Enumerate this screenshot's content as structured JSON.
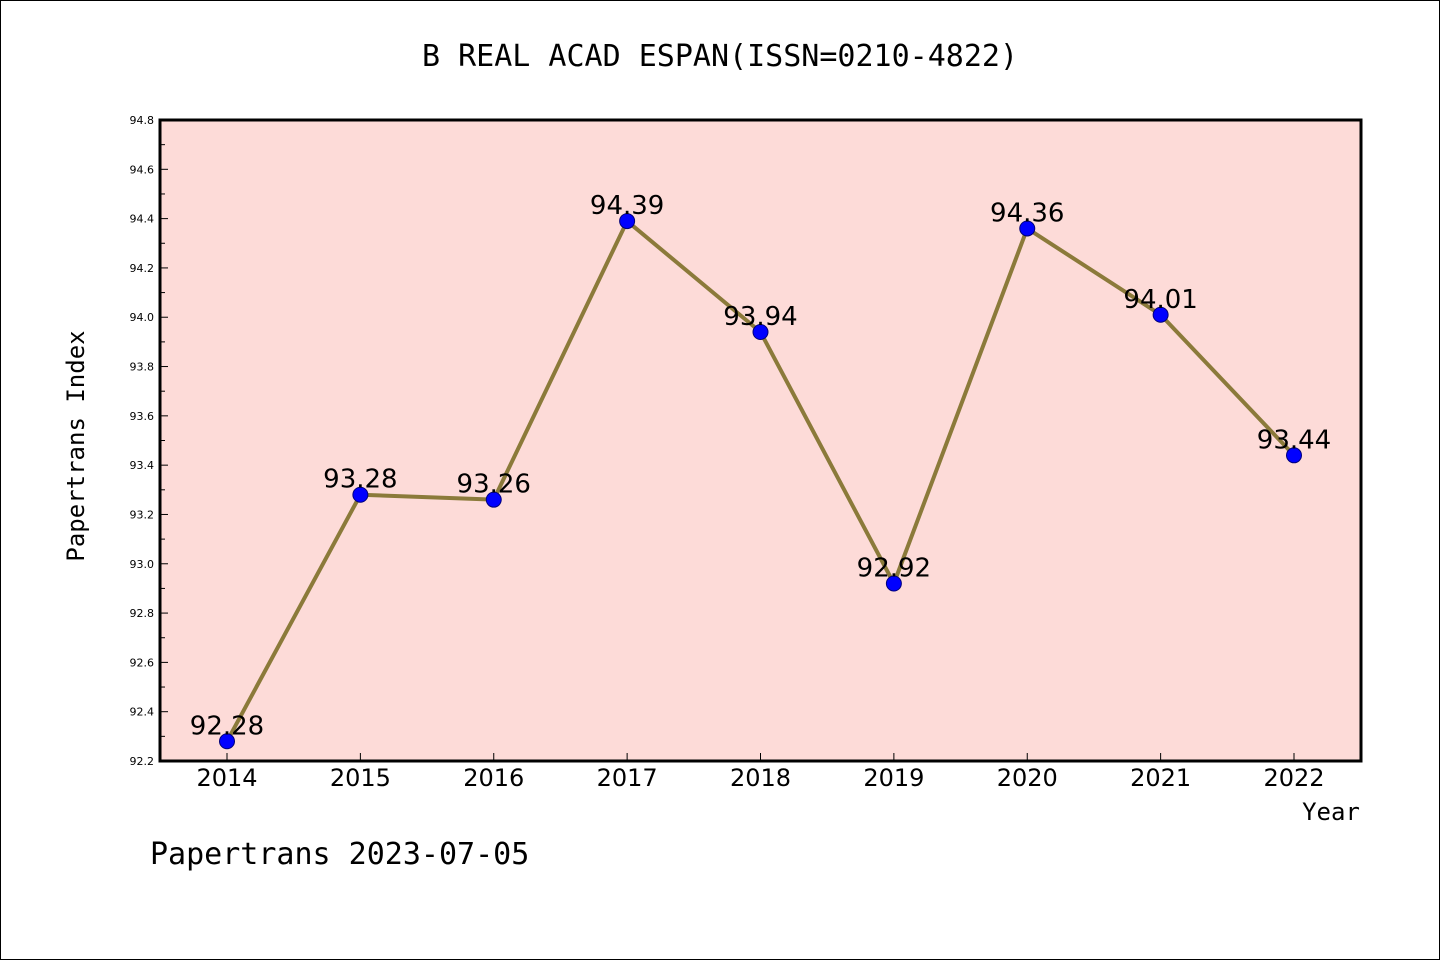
{
  "chart_data": {
    "type": "line",
    "title": "B REAL ACAD ESPAN(ISSN=0210-4822)",
    "xlabel": "Year",
    "ylabel": "Papertrans Index",
    "x": [
      "2014",
      "2015",
      "2016",
      "2017",
      "2018",
      "2019",
      "2020",
      "2021",
      "2022"
    ],
    "values": [
      92.28,
      93.28,
      93.26,
      94.39,
      93.94,
      92.92,
      94.36,
      94.01,
      93.44
    ],
    "data_labels": [
      "92.28",
      "93.28",
      "93.26",
      "94.39",
      "93.94",
      "92.92",
      "94.36",
      "94.01",
      "93.44"
    ],
    "ylim": [
      92.2,
      94.8
    ],
    "yticks": [
      "92.2",
      "92.4",
      "92.6",
      "92.8",
      "93.0",
      "93.2",
      "93.4",
      "93.6",
      "93.8",
      "94.0",
      "94.2",
      "94.4",
      "94.6",
      "94.8"
    ],
    "grid": false,
    "colors": {
      "plot_background": "#fddbd8",
      "line": "#8b7a3a",
      "marker": "#0000ff"
    }
  },
  "footer": "Papertrans 2023-07-05"
}
